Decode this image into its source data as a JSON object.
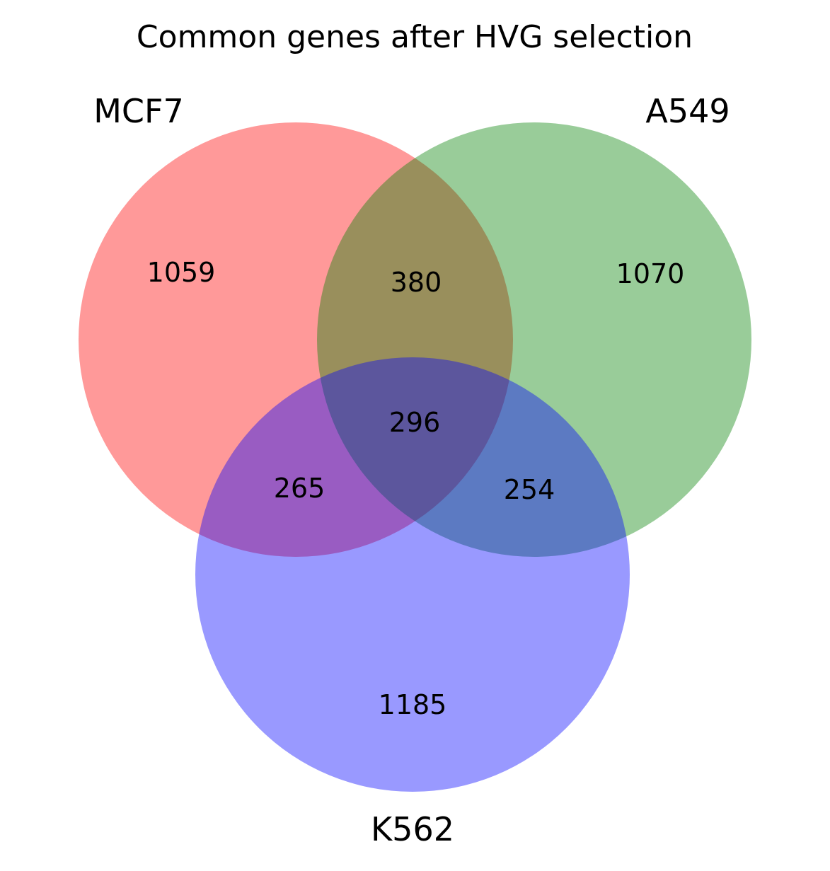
{
  "title": "Common genes after HVG selection",
  "sets": [
    {
      "name": "MCF7",
      "color": "#ff0000"
    },
    {
      "name": "A549",
      "color": "#008000"
    },
    {
      "name": "K562",
      "color": "#0000ff"
    }
  ],
  "region_counts": {
    "mcf7_only": "1059",
    "a549_only": "1070",
    "k562_only": "1185",
    "mcf7_a549": "380",
    "mcf7_k562": "265",
    "a549_k562": "254",
    "all_three": "296"
  },
  "style": {
    "fill_opacity": 0.4,
    "background": "#ffffff"
  }
}
